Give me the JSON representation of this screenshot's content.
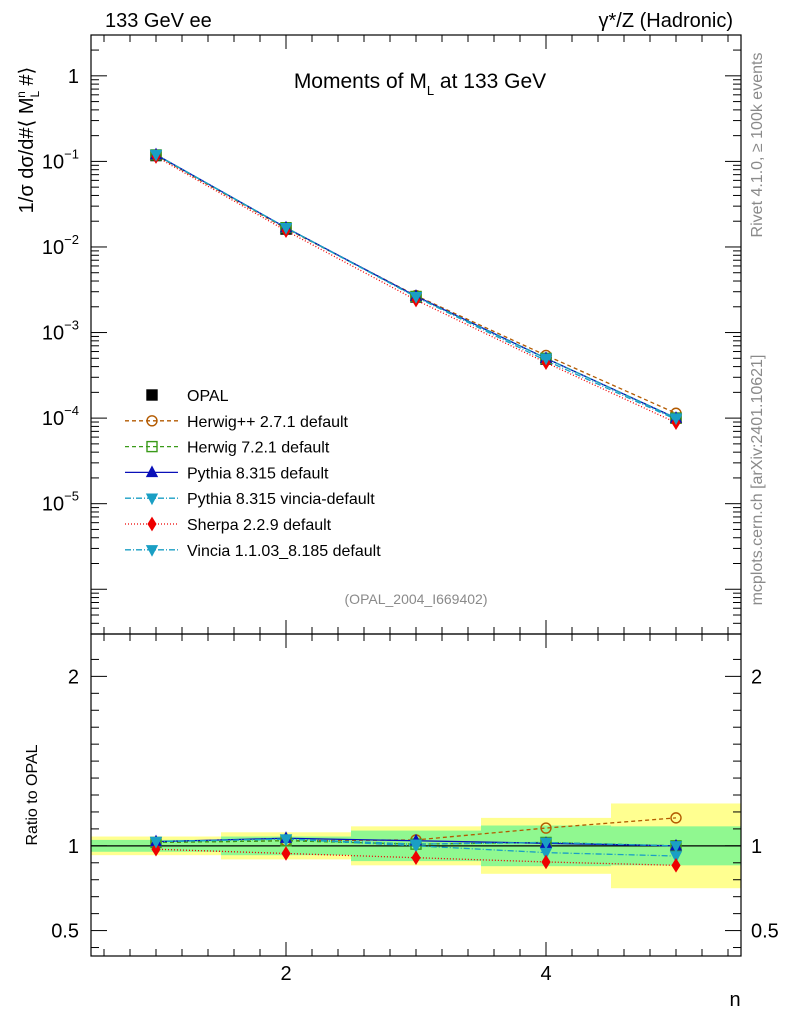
{
  "header": {
    "left": "133 GeV ee",
    "right": "γ*/Z (Hadronic)"
  },
  "side_text": {
    "upper": "Rivet 4.1.0, ≥ 100k events",
    "lower": "mcplots.cern.ch [arXiv:2401.10621]"
  },
  "chart_data": [
    {
      "panel": "main",
      "type": "line",
      "title": "Moments of M_L at 133 GeV",
      "title_parts": {
        "a": "Moments of M",
        "sub": "L",
        "b": " at 133 GeV"
      },
      "ylabel": "1/σ  dσ/d#⟨ M_L^n #⟩",
      "ylabel_parts": {
        "a": "1/σ  dσ/d#⟨ M",
        "sub": "L",
        "sup": "n",
        "b": " #⟩"
      },
      "yscale": "log",
      "ylim": [
        3e-07,
        3
      ],
      "xlim": [
        0.5,
        5.5
      ],
      "x": [
        1,
        2,
        3,
        4,
        5
      ],
      "yticks": [
        {
          "value": 1,
          "base": "1",
          "exp": ""
        },
        {
          "value": 0.1,
          "base": "10",
          "exp": "−1"
        },
        {
          "value": 0.01,
          "base": "10",
          "exp": "−2"
        },
        {
          "value": 0.001,
          "base": "10",
          "exp": "−3"
        },
        {
          "value": 0.0001,
          "base": "10",
          "exp": "−4"
        },
        {
          "value": 1e-05,
          "base": "10",
          "exp": "−5"
        }
      ],
      "watermark": "(OPAL_2004_I669402)",
      "legend_position": "middle-left",
      "series": [
        {
          "name": "OPAL",
          "color": "#000000",
          "marker": "square",
          "dash": "none",
          "values": [
            0.117,
            0.0162,
            0.0026,
            0.00049,
            0.0001
          ]
        },
        {
          "name": "Herwig++ 2.7.1 default",
          "color": "#b35a00",
          "marker": "circle-open",
          "dash": "4,3",
          "values": [
            0.118,
            0.0164,
            0.0027,
            0.00054,
            0.000114
          ]
        },
        {
          "name": "Herwig 7.2.1 default",
          "color": "#3a9a19",
          "marker": "square-open",
          "dash": "4,3",
          "values": [
            0.119,
            0.0168,
            0.00264,
            0.0005,
            0.0001
          ]
        },
        {
          "name": "Pythia 8.315 default",
          "color": "#0a10b8",
          "marker": "triangle-up",
          "dash": "none",
          "values": [
            0.12,
            0.0168,
            0.00266,
            0.0005,
            0.0001
          ]
        },
        {
          "name": "Pythia 8.315 vincia-default",
          "color": "#1a9fc4",
          "marker": "triangle-down",
          "dash": "6,2,1,2",
          "values": [
            0.12,
            0.0168,
            0.0026,
            0.00047,
            9.65e-05
          ]
        },
        {
          "name": "Sherpa 2.2.9 default",
          "color": "#ee0000",
          "marker": "diamond",
          "dash": "1,2",
          "values": [
            0.114,
            0.0155,
            0.0024,
            0.000445,
            8.85e-05
          ]
        },
        {
          "name": "Vincia 1.1.03_8.185 default",
          "color": "#1a9fc4",
          "marker": "triangle-down",
          "dash": "6,2,1,2",
          "values": [
            0.12,
            0.0168,
            0.00262,
            0.0005,
            0.0001
          ]
        }
      ]
    },
    {
      "panel": "ratio",
      "type": "line",
      "ylabel": "Ratio to OPAL",
      "xlabel": "n",
      "ylim": [
        0.35,
        2.25
      ],
      "xlim": [
        0.5,
        5.5
      ],
      "yticks": [
        {
          "value": 0.5,
          "label": "0.5"
        },
        {
          "value": 1,
          "label": "1"
        },
        {
          "value": 2,
          "label": "2"
        }
      ],
      "xticks": [
        {
          "value": 2,
          "label": "2"
        },
        {
          "value": 4,
          "label": "4"
        }
      ],
      "x": [
        1,
        2,
        3,
        4,
        5
      ],
      "bands": {
        "yellow_color": "#ffff90",
        "green_color": "#90f890",
        "yellow": [
          [
            0.945,
            1.055
          ],
          [
            0.92,
            1.08
          ],
          [
            0.885,
            1.115
          ],
          [
            0.835,
            1.165
          ],
          [
            0.75,
            1.25
          ]
        ],
        "green": [
          [
            0.965,
            1.035
          ],
          [
            0.945,
            1.055
          ],
          [
            0.91,
            1.09
          ],
          [
            0.88,
            1.12
          ],
          [
            0.885,
            1.115
          ]
        ]
      },
      "series": [
        {
          "name": "Herwig++ 2.7.1 default",
          "color": "#b35a00",
          "marker": "circle-open",
          "dash": "4,3",
          "values": [
            1.02,
            1.03,
            1.035,
            1.105,
            1.165
          ]
        },
        {
          "name": "Herwig 7.2.1 default",
          "color": "#3a9a19",
          "marker": "square-open",
          "dash": "4,3",
          "values": [
            1.02,
            1.03,
            1.01,
            1.02,
            1.0
          ]
        },
        {
          "name": "Pythia 8.315 default",
          "color": "#0a10b8",
          "marker": "triangle-up",
          "dash": "none",
          "values": [
            1.025,
            1.045,
            1.03,
            1.015,
            1.0
          ]
        },
        {
          "name": "Pythia 8.315 vincia-default",
          "color": "#1a9fc4",
          "marker": "triangle-down",
          "dash": "6,2,1,2",
          "values": [
            1.025,
            1.04,
            1.0,
            0.96,
            0.94
          ]
        },
        {
          "name": "Sherpa 2.2.9 default",
          "color": "#ee0000",
          "marker": "diamond",
          "dash": "1,2",
          "values": [
            0.98,
            0.955,
            0.93,
            0.905,
            0.885
          ]
        },
        {
          "name": "Vincia 1.1.03_8.185 default",
          "color": "#1a9fc4",
          "marker": "triangle-down",
          "dash": "6,2,1,2",
          "values": [
            1.025,
            1.04,
            1.01,
            1.02,
            1.0
          ]
        }
      ]
    }
  ]
}
